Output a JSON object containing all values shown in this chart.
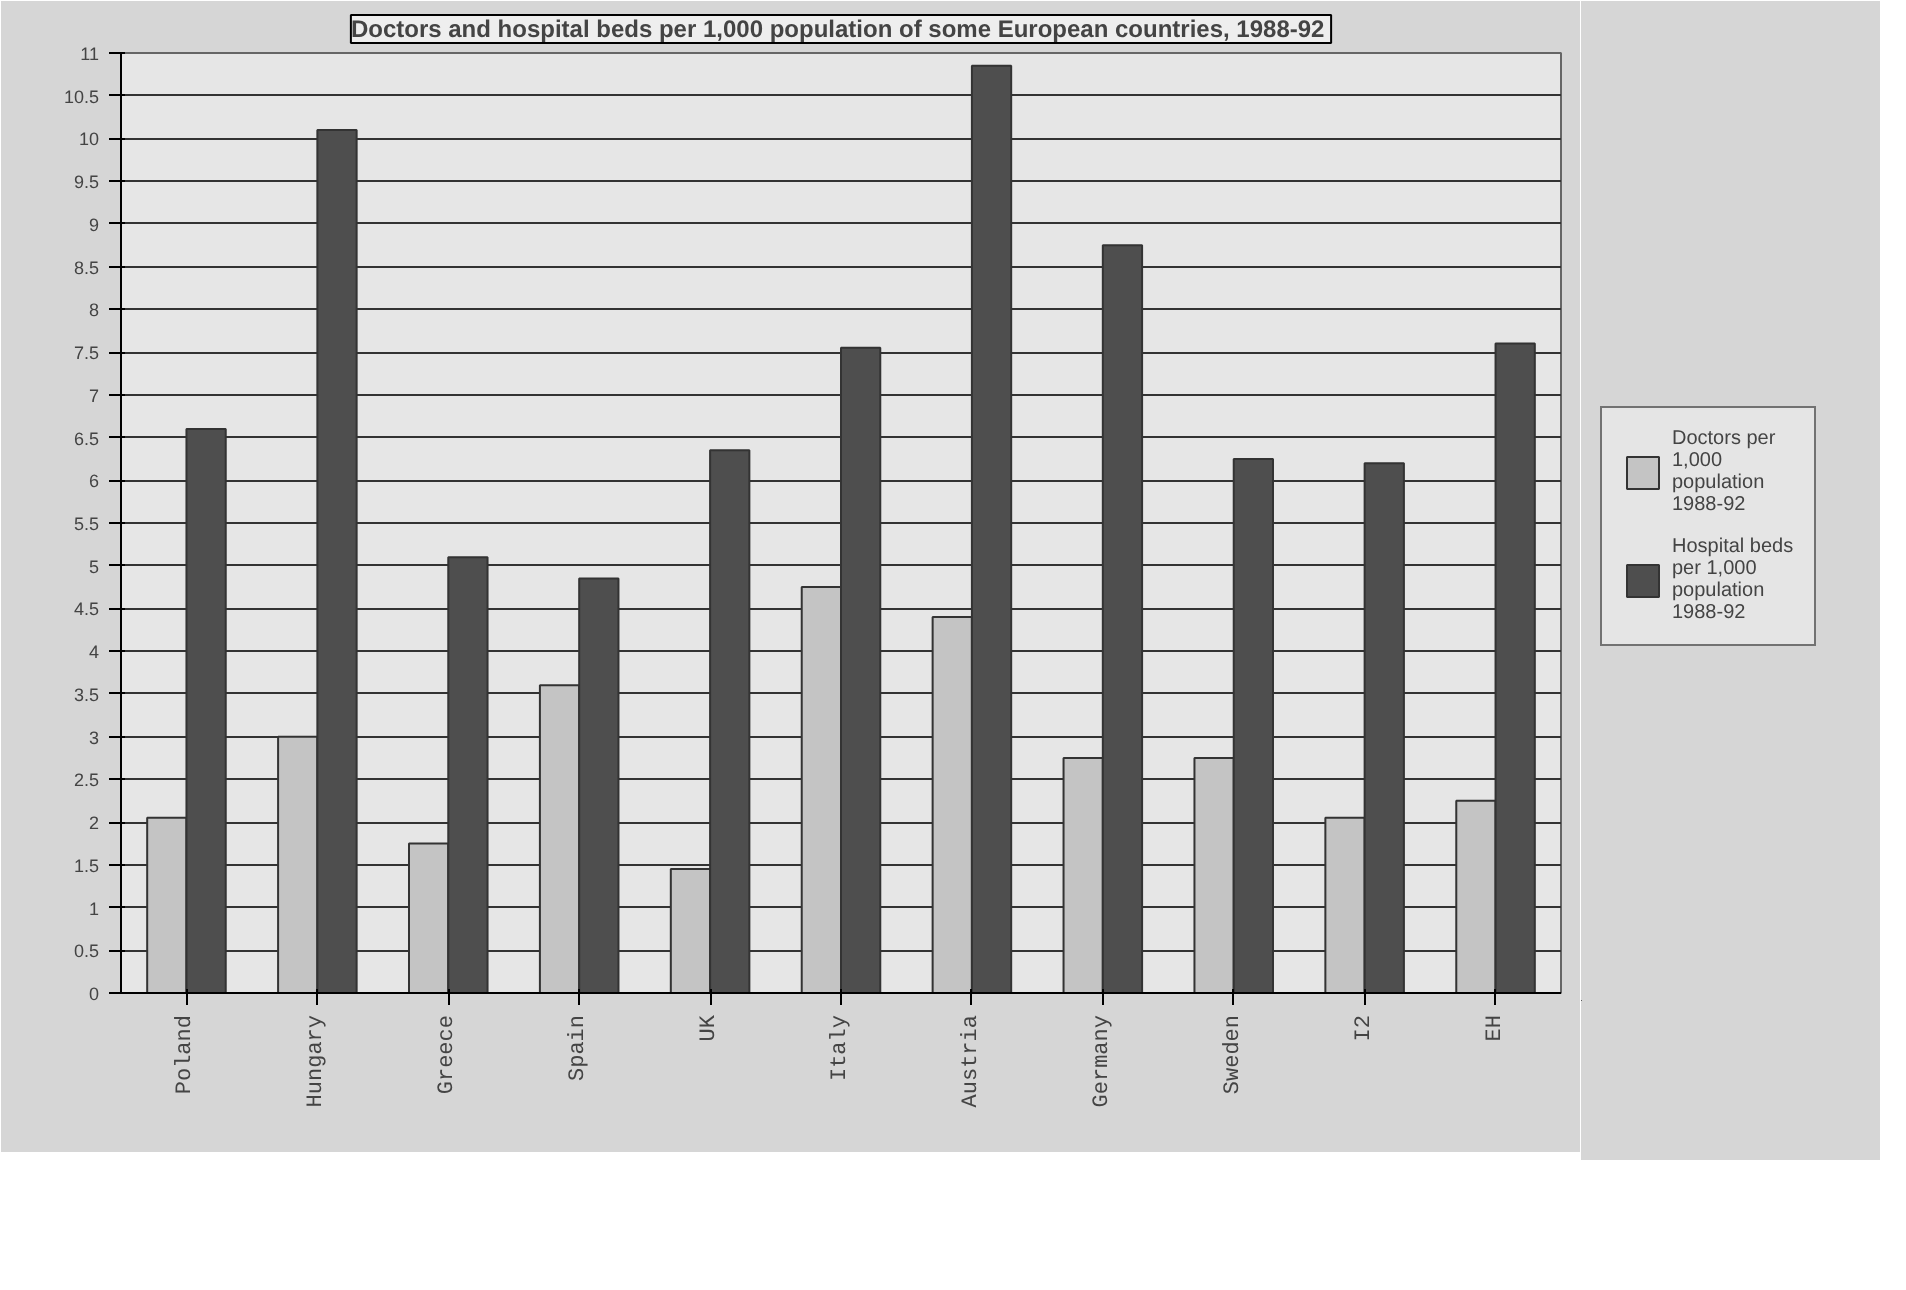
{
  "chart_data": {
    "type": "bar",
    "title": "Doctors and hospital beds per 1,000 population  of some European countries, 1988-92",
    "categories": [
      "Poland",
      "Hungary",
      "Greece",
      "Spain",
      "UK",
      "Italy",
      "Austria",
      "Germany",
      "Sweden",
      "I2",
      "EH"
    ],
    "series": [
      {
        "name": "Doctors per 1,000 population 1988-92",
        "color": "#c4c4c4",
        "values": [
          2.05,
          3.0,
          1.75,
          3.6,
          1.45,
          4.75,
          4.4,
          2.75,
          2.75,
          2.05,
          2.25
        ]
      },
      {
        "name": "Hospital beds per 1,000 population 1988-92",
        "color": "#4e4e4e",
        "values": [
          6.6,
          10.1,
          5.1,
          4.85,
          6.35,
          7.55,
          10.85,
          8.75,
          6.25,
          6.2,
          7.6
        ]
      }
    ],
    "ylim": [
      0,
      11
    ],
    "yticks": [
      0,
      0.5,
      1,
      1.5,
      2,
      2.5,
      3,
      3.5,
      4,
      4.5,
      5,
      5.5,
      6,
      6.5,
      7,
      7.5,
      8,
      8.5,
      9,
      9.5,
      10,
      10.5,
      11
    ],
    "grid": "y",
    "legend": "right"
  }
}
